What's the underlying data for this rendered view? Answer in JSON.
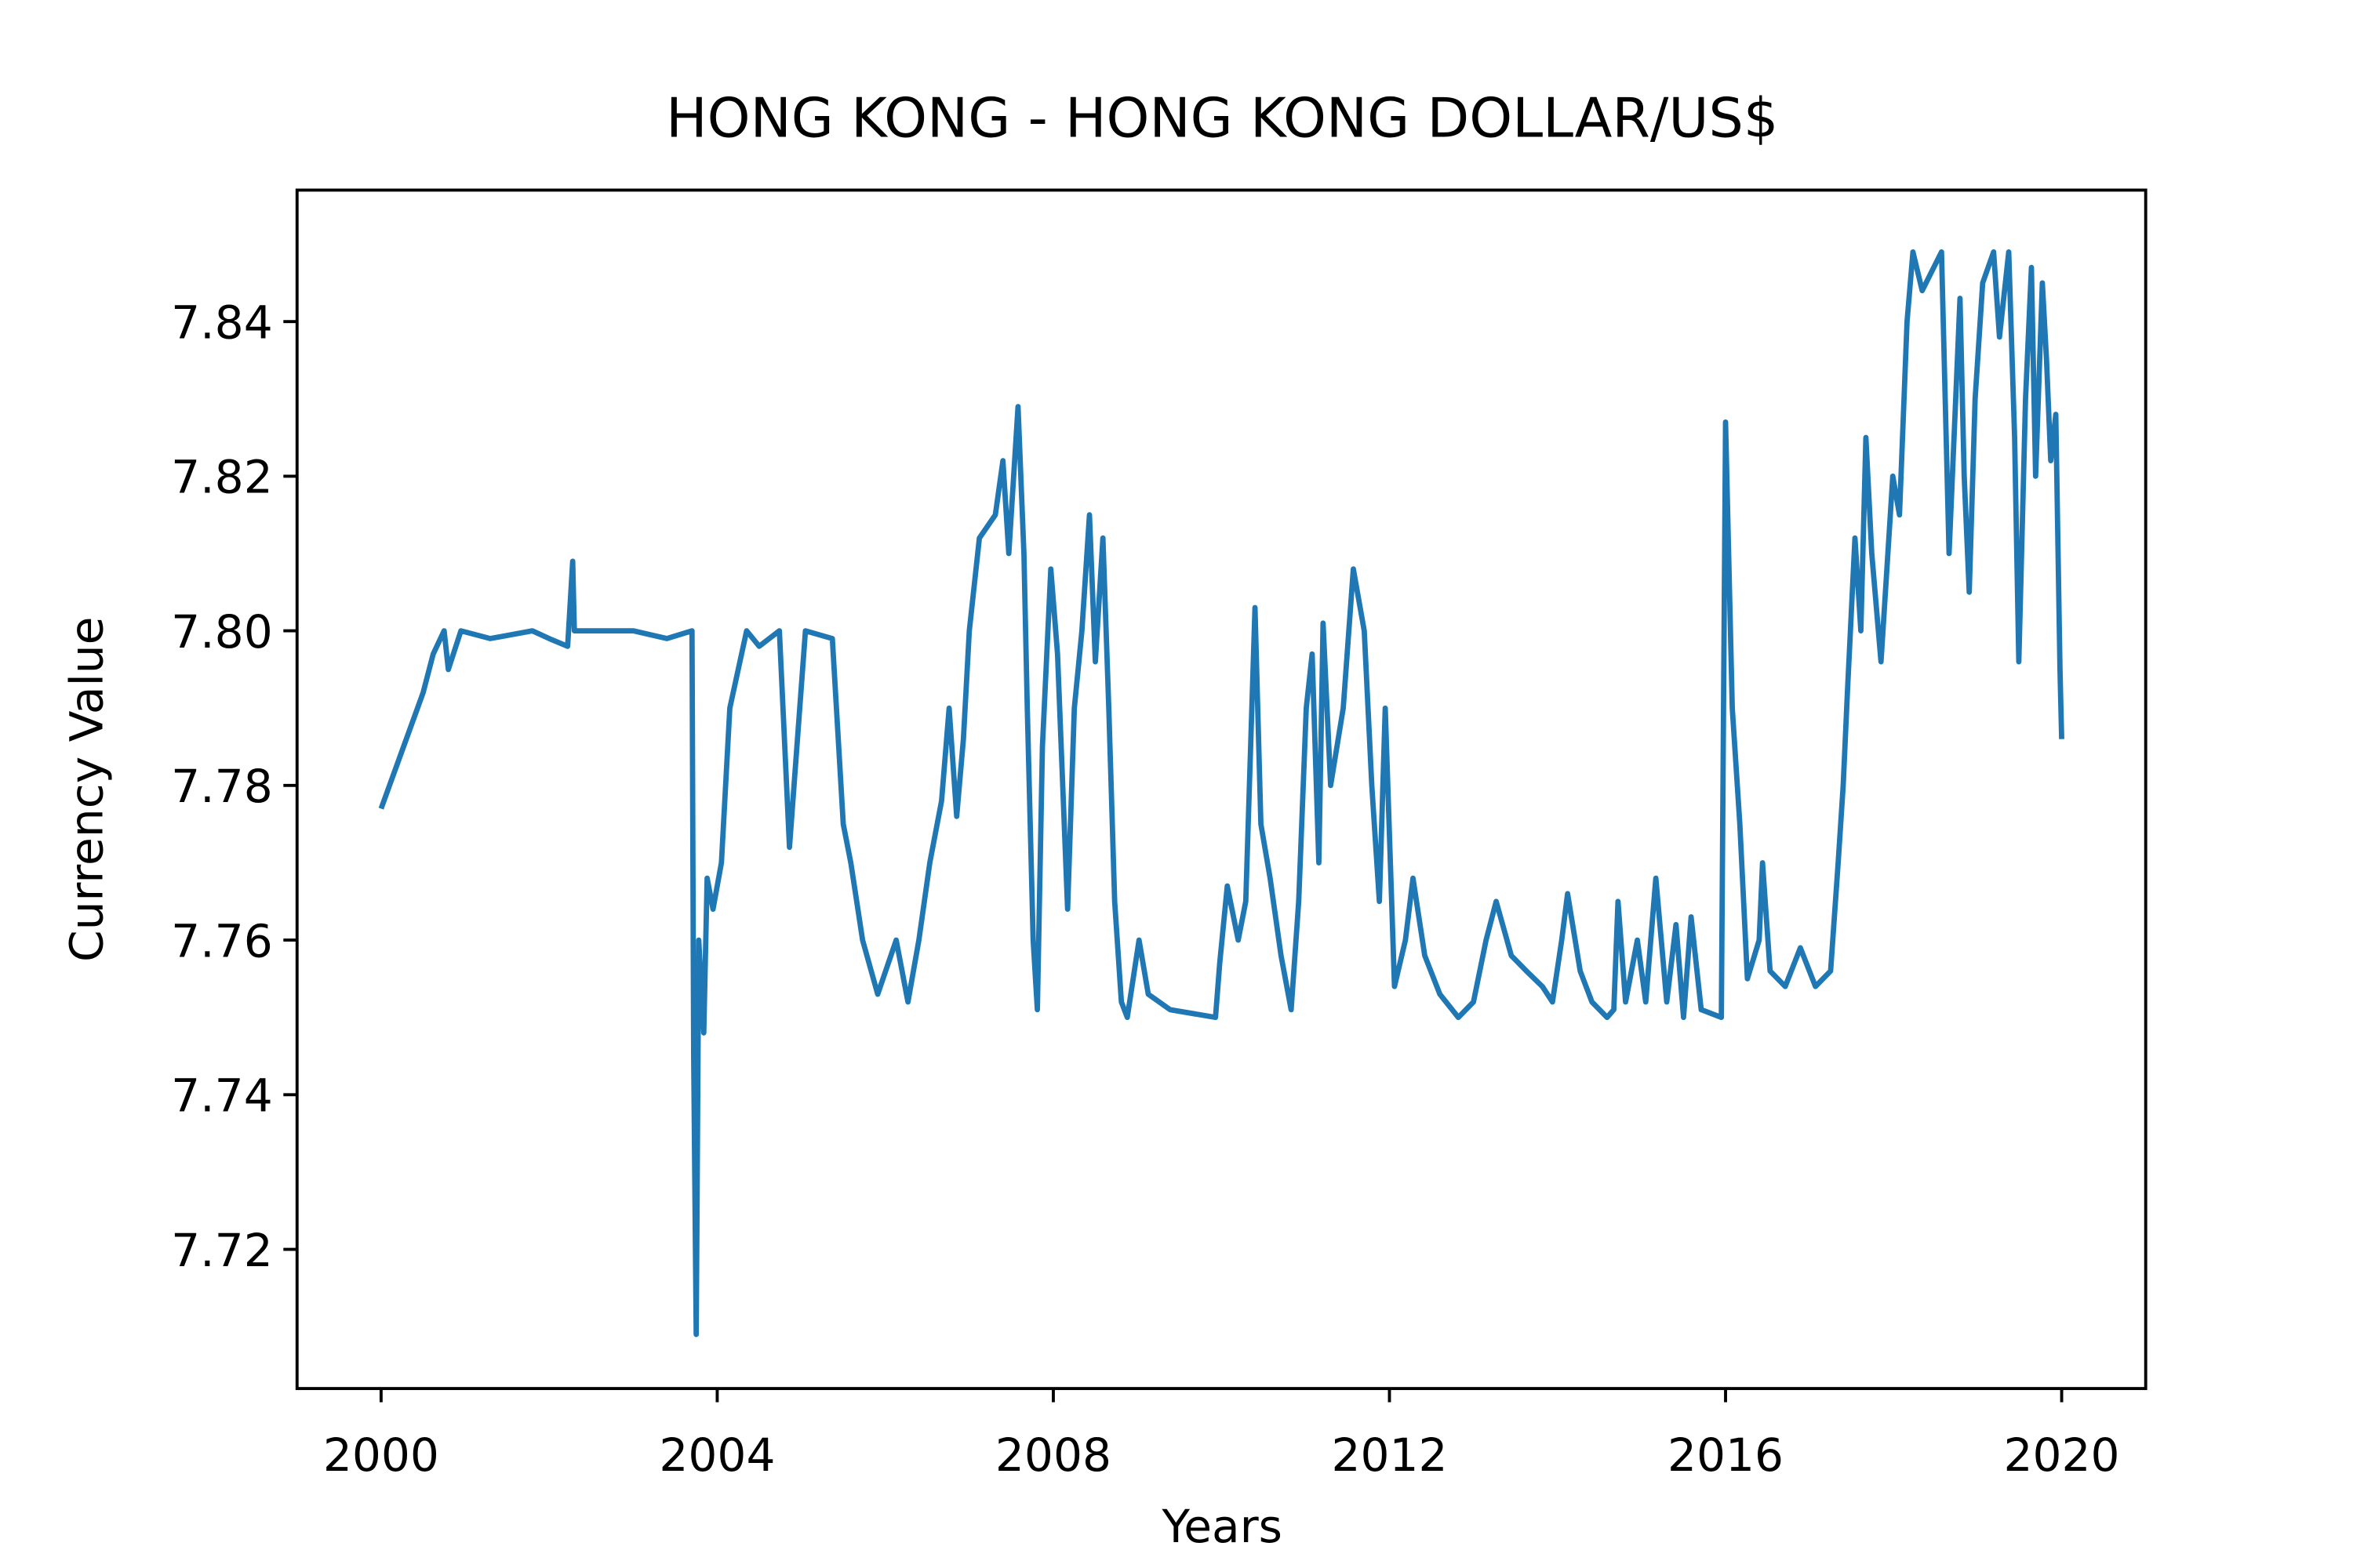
{
  "chart_data": {
    "type": "line",
    "title": "HONG KONG - HONG KONG DOLLAR/US$",
    "x_label": "Years",
    "y_label": "Currency Value",
    "color": "#1f77b4",
    "xlim": [
      1999,
      2021
    ],
    "ylim": [
      7.702,
      7.857
    ],
    "xticks": [
      2000,
      2004,
      2008,
      2012,
      2016,
      2020
    ],
    "yticks": [
      7.72,
      7.74,
      7.76,
      7.78,
      {
        "value": 7.8,
        "label": "7.80"
      },
      7.82,
      7.84
    ],
    "grid": false,
    "x": [
      2000.0,
      2000.1,
      2000.3,
      2000.5,
      2000.62,
      2000.75,
      2000.8,
      2000.95,
      2001.3,
      2001.8,
      2002.0,
      2002.22,
      2002.28,
      2002.3,
      2003.0,
      2003.4,
      2003.7,
      2003.72,
      2003.75,
      2003.78,
      2003.84,
      2003.88,
      2003.95,
      2004.05,
      2004.15,
      2004.25,
      2004.35,
      2004.5,
      2004.74,
      2004.86,
      2005.05,
      2005.37,
      2005.5,
      2005.59,
      2005.73,
      2005.91,
      2006.13,
      2006.27,
      2006.4,
      2006.53,
      2006.67,
      2006.76,
      2006.85,
      2006.93,
      2007.0,
      2007.12,
      2007.31,
      2007.4,
      2007.47,
      2007.58,
      2007.65,
      2007.69,
      2007.76,
      2007.81,
      2007.87,
      2007.97,
      2008.05,
      2008.17,
      2008.25,
      2008.34,
      2008.43,
      2008.5,
      2008.59,
      2008.66,
      2008.73,
      2008.81,
      2008.88,
      2009.02,
      2009.13,
      2009.39,
      2009.93,
      2009.98,
      2010.07,
      2010.2,
      2010.29,
      2010.4,
      2010.47,
      2010.58,
      2010.71,
      2010.83,
      2010.92,
      2011.01,
      2011.08,
      2011.16,
      2011.21,
      2011.3,
      2011.45,
      2011.57,
      2011.7,
      2011.79,
      2011.88,
      2011.95,
      2012.06,
      2012.19,
      2012.28,
      2012.42,
      2012.6,
      2012.82,
      2013.0,
      2013.15,
      2013.27,
      2013.45,
      2013.63,
      2013.82,
      2013.94,
      2014.05,
      2014.12,
      2014.27,
      2014.41,
      2014.59,
      2014.67,
      2014.72,
      2014.81,
      2014.95,
      2015.05,
      2015.17,
      2015.3,
      2015.41,
      2015.5,
      2015.59,
      2015.71,
      2015.95,
      2016.0,
      2016.08,
      2016.17,
      2016.26,
      2016.4,
      2016.44,
      2016.53,
      2016.71,
      2016.89,
      2017.07,
      2017.25,
      2017.34,
      2017.4,
      2017.45,
      2017.54,
      2017.61,
      2017.67,
      2017.74,
      2017.85,
      2017.99,
      2018.07,
      2018.16,
      2018.23,
      2018.34,
      2018.57,
      2018.66,
      2018.79,
      2018.84,
      2018.9,
      2018.97,
      2019.06,
      2019.19,
      2019.26,
      2019.37,
      2019.44,
      2019.49,
      2019.57,
      2019.64,
      2019.69,
      2019.77,
      2019.82,
      2019.87,
      2019.93,
      2019.98,
      2020.0
    ],
    "values": [
      7.777,
      7.78,
      7.786,
      7.792,
      7.797,
      7.8,
      7.795,
      7.8,
      7.799,
      7.8,
      7.799,
      7.798,
      7.809,
      7.8,
      7.8,
      7.799,
      7.8,
      7.745,
      7.709,
      7.76,
      7.748,
      7.768,
      7.764,
      7.77,
      7.79,
      7.795,
      7.8,
      7.798,
      7.8,
      7.772,
      7.8,
      7.799,
      7.775,
      7.77,
      7.76,
      7.753,
      7.76,
      7.752,
      7.76,
      7.77,
      7.778,
      7.79,
      7.776,
      7.786,
      7.8,
      7.812,
      7.815,
      7.822,
      7.81,
      7.829,
      7.81,
      7.79,
      7.76,
      7.751,
      7.785,
      7.808,
      7.797,
      7.764,
      7.79,
      7.8,
      7.815,
      7.796,
      7.812,
      7.79,
      7.765,
      7.752,
      7.75,
      7.76,
      7.753,
      7.751,
      7.75,
      7.757,
      7.767,
      7.76,
      7.765,
      7.803,
      7.775,
      7.768,
      7.758,
      7.751,
      7.765,
      7.79,
      7.797,
      7.77,
      7.801,
      7.78,
      7.79,
      7.808,
      7.8,
      7.78,
      7.765,
      7.79,
      7.754,
      7.76,
      7.768,
      7.758,
      7.753,
      7.75,
      7.752,
      7.76,
      7.765,
      7.758,
      7.756,
      7.754,
      7.752,
      7.76,
      7.766,
      7.756,
      7.752,
      7.75,
      7.751,
      7.765,
      7.752,
      7.76,
      7.752,
      7.768,
      7.752,
      7.762,
      7.75,
      7.763,
      7.751,
      7.75,
      7.827,
      7.79,
      7.775,
      7.755,
      7.76,
      7.77,
      7.756,
      7.754,
      7.759,
      7.754,
      7.756,
      7.77,
      7.78,
      7.792,
      7.812,
      7.8,
      7.825,
      7.81,
      7.796,
      7.82,
      7.815,
      7.84,
      7.849,
      7.844,
      7.849,
      7.81,
      7.843,
      7.82,
      7.805,
      7.83,
      7.845,
      7.849,
      7.838,
      7.849,
      7.825,
      7.796,
      7.83,
      7.847,
      7.82,
      7.845,
      7.835,
      7.822,
      7.828,
      7.795,
      7.786
    ]
  }
}
